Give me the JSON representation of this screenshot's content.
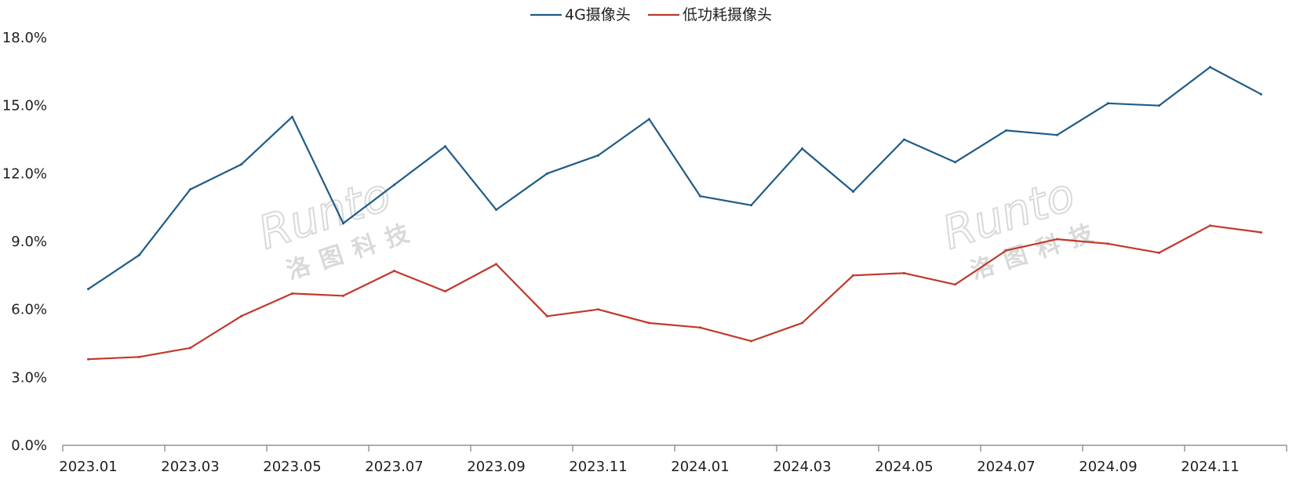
{
  "chart_data": {
    "type": "line",
    "title": "",
    "xlabel": "",
    "ylabel": "",
    "ylim": [
      0,
      18
    ],
    "y_ticks": [
      "0.0%",
      "3.0%",
      "6.0%",
      "9.0%",
      "12.0%",
      "15.0%",
      "18.0%"
    ],
    "y_tick_values": [
      0,
      3,
      6,
      9,
      12,
      15,
      18
    ],
    "x": [
      "2023.01",
      "2023.02",
      "2023.03",
      "2023.04",
      "2023.05",
      "2023.06",
      "2023.07",
      "2023.08",
      "2023.09",
      "2023.10",
      "2023.11",
      "2023.12",
      "2024.01",
      "2024.02",
      "2024.03",
      "2024.04",
      "2024.05",
      "2024.06",
      "2024.07",
      "2024.08",
      "2024.09",
      "2024.10",
      "2024.11",
      "2024.12"
    ],
    "x_tick_labels": [
      "2023.01",
      "2023.03",
      "2023.05",
      "2023.07",
      "2023.09",
      "2023.11",
      "2024.01",
      "2024.03",
      "2024.05",
      "2024.07",
      "2024.09",
      "2024.11"
    ],
    "legend_position": "top-center",
    "grid": false,
    "series": [
      {
        "name": "4G摄像头",
        "color": "#1f5c87",
        "values": [
          6.9,
          8.4,
          11.3,
          12.4,
          14.5,
          9.8,
          11.5,
          13.2,
          10.4,
          12.0,
          12.8,
          14.4,
          11.0,
          10.6,
          13.1,
          11.2,
          13.5,
          12.5,
          13.9,
          13.7,
          15.1,
          15.0,
          16.7,
          15.5
        ]
      },
      {
        "name": "低功耗摄像头",
        "color": "#c0392b",
        "values": [
          3.8,
          3.9,
          4.3,
          5.7,
          6.7,
          6.6,
          7.7,
          6.8,
          8.0,
          5.7,
          6.0,
          5.4,
          5.2,
          4.6,
          5.4,
          7.5,
          7.6,
          7.1,
          8.6,
          9.1,
          8.9,
          8.5,
          9.7,
          9.4
        ]
      }
    ]
  },
  "watermark": {
    "logo": "Runto",
    "subtitle": "洛图科技"
  }
}
